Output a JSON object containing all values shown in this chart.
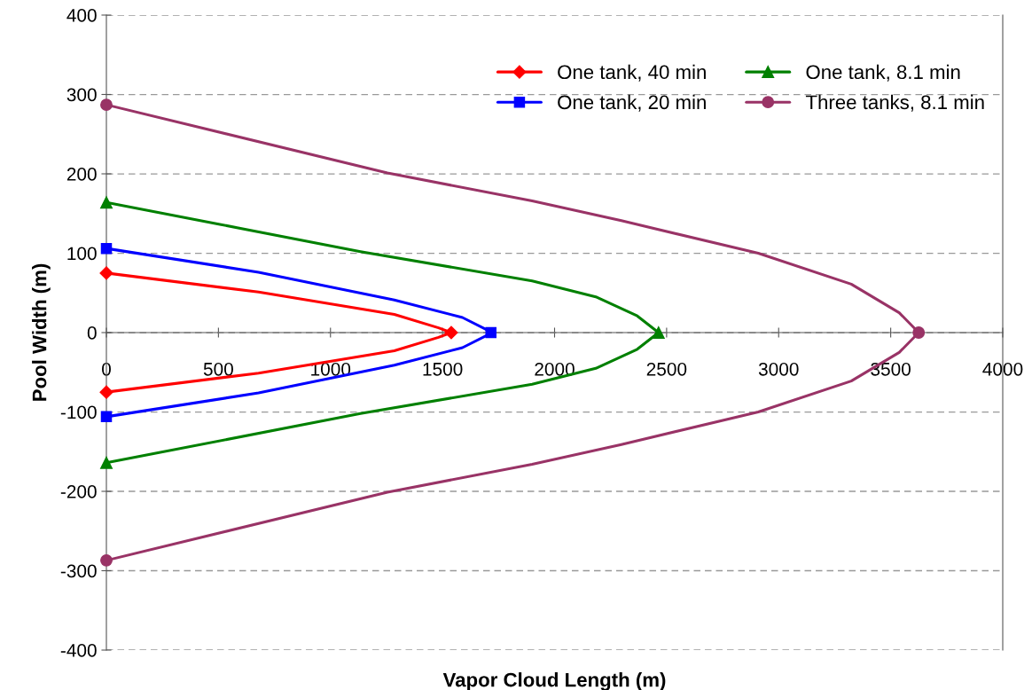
{
  "chart_data": {
    "type": "line",
    "xlabel": "Vapor Cloud Length (m)",
    "ylabel": "Pool Width (m)",
    "xlim": [
      0,
      4000
    ],
    "xticks": [
      0,
      500,
      1000,
      1500,
      2000,
      2500,
      3000,
      3500,
      4000
    ],
    "ylim": [
      -400,
      400
    ],
    "yticks": [
      -400,
      -300,
      -200,
      -100,
      0,
      100,
      200,
      300,
      400
    ],
    "grid": "y",
    "legend": "top right",
    "line_style": "solid",
    "series": [
      {
        "name": "One tank, 40 min",
        "color": "#ff0000",
        "x": [
          0,
          679,
          1285,
          1482,
          1539,
          1482,
          1285,
          679,
          0
        ],
        "values": [
          75,
          51,
          23,
          6,
          0,
          -6,
          -23,
          -51,
          -75
        ]
      },
      {
        "type": "scatter",
        "color": "#ff0000",
        "marker": "diamond",
        "x": [
          0,
          1539,
          0
        ],
        "values": [
          75,
          0,
          -75
        ]
      },
      {
        "name": "One tank, 20 min",
        "color": "#0000ff",
        "x": [
          0,
          679,
          1285,
          1589,
          1694,
          1716,
          1694,
          1589,
          1285,
          679,
          0
        ],
        "values": [
          106,
          76,
          41,
          19,
          4,
          0,
          -4,
          -19,
          -41,
          -76,
          -106
        ]
      },
      {
        "type": "scatter",
        "color": "#0000ff",
        "marker": "square",
        "x": [
          0,
          1716,
          0
        ],
        "values": [
          106,
          0,
          -106
        ]
      },
      {
        "name": "One tank, 8.1 min",
        "color": "#008000",
        "x": [
          0,
          1134,
          1900,
          2184,
          2369,
          2464,
          2369,
          2184,
          1900,
          1134,
          0
        ],
        "values": [
          164,
          102,
          65,
          45,
          21,
          0,
          -21,
          -45,
          -65,
          -102,
          -164
        ]
      },
      {
        "type": "scatter",
        "color": "#008000",
        "marker": "triangle",
        "x": [
          0,
          2464,
          0
        ],
        "values": [
          164,
          0,
          -164
        ]
      },
      {
        "name": "Three tanks, 8.1 min",
        "color": "#993366",
        "x": [
          0,
          1254,
          1900,
          2298,
          2909,
          3324,
          3538,
          3625,
          3538,
          3324,
          2909,
          2298,
          1900,
          1254,
          0
        ],
        "values": [
          287,
          201,
          166,
          141,
          100,
          61,
          25,
          0,
          -25,
          -61,
          -100,
          -141,
          -166,
          -201,
          -287
        ]
      },
      {
        "type": "scatter",
        "color": "#993366",
        "marker": "circle",
        "x": [
          0,
          3625,
          0
        ],
        "values": [
          287,
          0,
          -287
        ]
      }
    ]
  }
}
